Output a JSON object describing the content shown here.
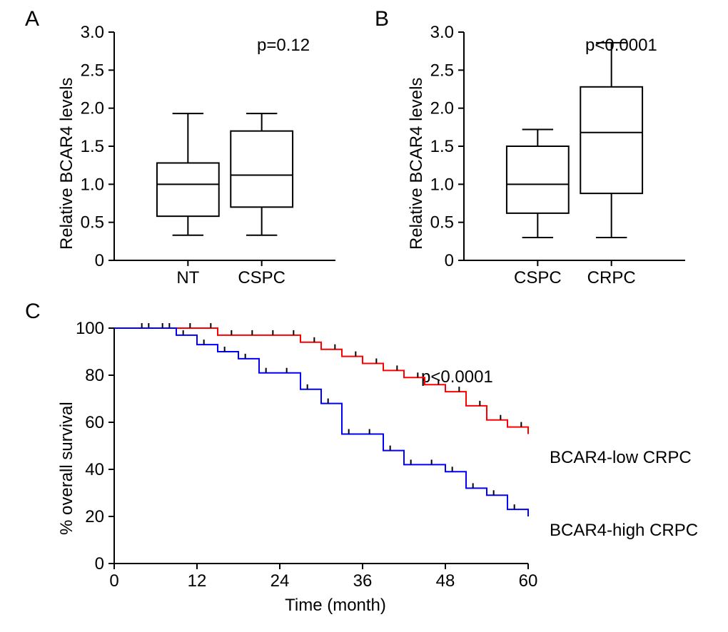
{
  "panelA": {
    "label": "A",
    "type": "boxplot",
    "ylabel": "Relative BCAR4 levels",
    "ylim": [
      0,
      3.0
    ],
    "ytick_step": 0.5,
    "yticks": [
      0,
      0.5,
      1.0,
      1.5,
      2.0,
      2.5,
      3.0
    ],
    "categories": [
      "NT",
      "CSPC"
    ],
    "boxes": [
      {
        "min": 0.33,
        "q1": 0.58,
        "median": 1.0,
        "q3": 1.28,
        "max": 1.93
      },
      {
        "min": 0.33,
        "q1": 0.7,
        "median": 1.12,
        "q3": 1.7,
        "max": 1.93
      }
    ],
    "annotation": "p=0.12",
    "stroke_color": "#000000",
    "stroke_width": 2,
    "background_color": "#ffffff",
    "title_fontsize": 24,
    "label_fontsize": 24
  },
  "panelB": {
    "label": "B",
    "type": "boxplot",
    "ylabel": "Relative BCAR4 levels",
    "ylim": [
      0,
      3.0
    ],
    "ytick_step": 0.5,
    "yticks": [
      0,
      0.5,
      1.0,
      1.5,
      2.0,
      2.5,
      3.0
    ],
    "categories": [
      "CSPC",
      "CRPC"
    ],
    "boxes": [
      {
        "min": 0.3,
        "q1": 0.62,
        "median": 1.0,
        "q3": 1.5,
        "max": 1.72
      },
      {
        "min": 0.3,
        "q1": 0.88,
        "median": 1.68,
        "q3": 2.28,
        "max": 2.86
      }
    ],
    "annotation": "p<0.0001",
    "stroke_color": "#000000",
    "stroke_width": 2,
    "background_color": "#ffffff",
    "title_fontsize": 24,
    "label_fontsize": 24
  },
  "panelC": {
    "label": "C",
    "type": "survival",
    "ylabel": "% overall survival",
    "xlabel": "Time (month)",
    "xlim": [
      0,
      60
    ],
    "ylim": [
      0,
      100
    ],
    "xticks": [
      0,
      12,
      24,
      36,
      48,
      60
    ],
    "yticks": [
      0,
      20,
      40,
      60,
      80,
      100
    ],
    "annotation": "p<0.0001",
    "series": [
      {
        "name": "BCAR4-low CRPC",
        "color": "#ff0000",
        "line_width": 2,
        "points": [
          [
            0,
            100
          ],
          [
            3,
            100
          ],
          [
            6,
            100
          ],
          [
            9,
            100
          ],
          [
            12,
            100
          ],
          [
            15,
            97
          ],
          [
            18,
            97
          ],
          [
            21,
            97
          ],
          [
            24,
            97
          ],
          [
            27,
            94
          ],
          [
            30,
            91
          ],
          [
            33,
            88
          ],
          [
            36,
            85
          ],
          [
            39,
            82
          ],
          [
            42,
            79
          ],
          [
            45,
            76
          ],
          [
            48,
            73
          ],
          [
            51,
            67
          ],
          [
            54,
            61
          ],
          [
            57,
            58
          ],
          [
            60,
            55
          ]
        ],
        "censor_x": [
          5,
          8,
          11,
          14,
          17,
          20,
          23,
          26,
          29,
          32,
          35,
          38,
          41,
          44,
          47,
          50,
          53,
          56,
          59
        ]
      },
      {
        "name": "BCAR4-high CRPC",
        "color": "#0000ff",
        "line_width": 2,
        "points": [
          [
            0,
            100
          ],
          [
            3,
            100
          ],
          [
            6,
            100
          ],
          [
            9,
            97
          ],
          [
            12,
            93
          ],
          [
            15,
            90
          ],
          [
            18,
            87
          ],
          [
            21,
            81
          ],
          [
            24,
            81
          ],
          [
            27,
            74
          ],
          [
            30,
            68
          ],
          [
            33,
            55
          ],
          [
            36,
            55
          ],
          [
            39,
            48
          ],
          [
            42,
            42
          ],
          [
            45,
            42
          ],
          [
            48,
            39
          ],
          [
            51,
            32
          ],
          [
            54,
            29
          ],
          [
            57,
            23
          ],
          [
            60,
            20
          ]
        ],
        "censor_x": [
          4,
          7,
          10,
          13,
          16,
          19,
          22,
          25,
          28,
          31,
          34,
          37,
          40,
          43,
          46,
          49,
          52,
          55,
          58
        ]
      }
    ],
    "stroke_color": "#000000",
    "stroke_width": 2,
    "background_color": "#ffffff",
    "title_fontsize": 24,
    "label_fontsize": 24
  }
}
